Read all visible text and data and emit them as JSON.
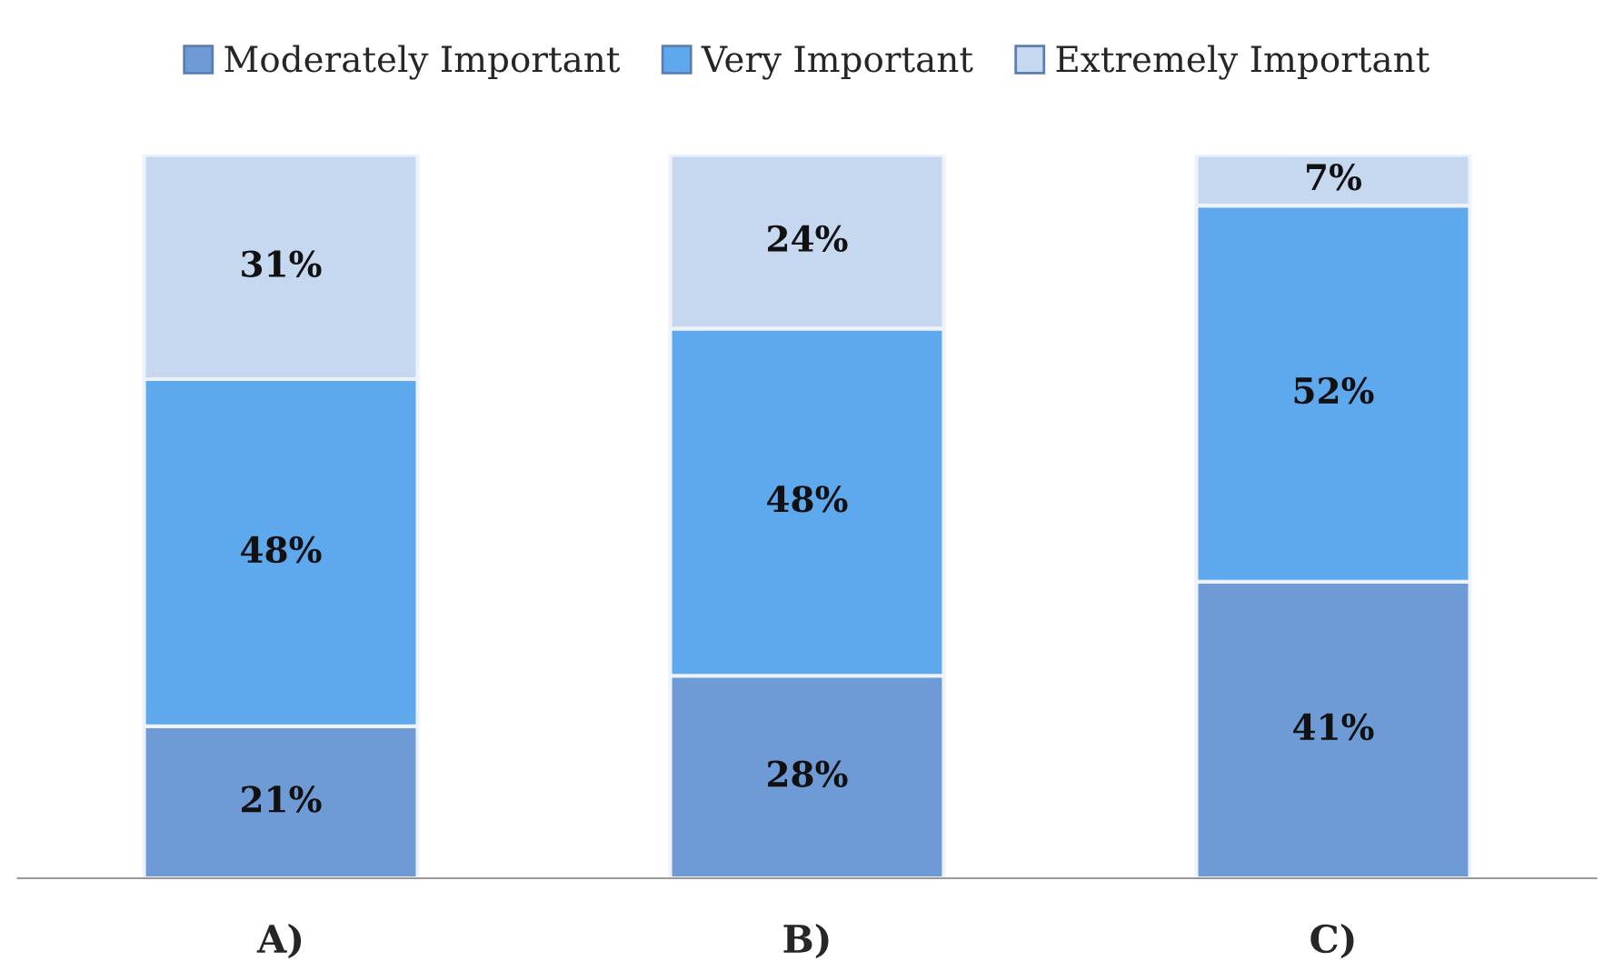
{
  "chart_data": {
    "type": "bar",
    "stacked": true,
    "categories": [
      "A)",
      "B)",
      "C)"
    ],
    "series": [
      {
        "name": "Moderately Important",
        "color": "#6e9bd6",
        "values": [
          21,
          28,
          41
        ],
        "value_labels": [
          "21%",
          "28%",
          "41%"
        ]
      },
      {
        "name": "Very Important",
        "color": "#5ea8ee",
        "values": [
          48,
          48,
          52
        ],
        "value_labels": [
          "48%",
          "48%",
          "52%"
        ]
      },
      {
        "name": "Extremely Important",
        "color": "#c6d7f0",
        "values": [
          31,
          24,
          7
        ],
        "value_labels": [
          "31%",
          "24%",
          "7%"
        ]
      }
    ],
    "tick_labels": "x",
    "legend": "top"
  }
}
